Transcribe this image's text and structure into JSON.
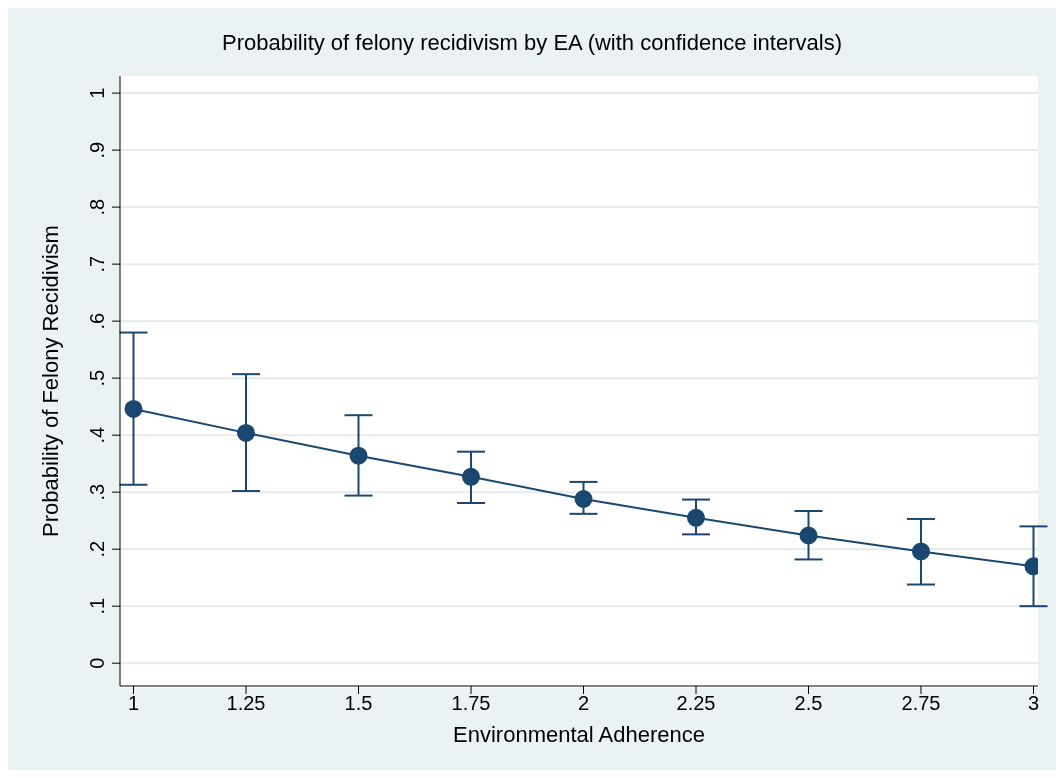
{
  "chart_data": {
    "type": "line",
    "title": "Probability of felony recidivism by EA (with confidence intervals)",
    "xlabel": "Environmental Adherence",
    "ylabel": "Probability of Felony Recidivism",
    "x": [
      1,
      1.25,
      1.5,
      1.75,
      2,
      2.25,
      2.5,
      2.75,
      3
    ],
    "series": [
      {
        "color": "#1a476f",
        "values": [
          0.446,
          0.404,
          0.364,
          0.327,
          0.288,
          0.255,
          0.224,
          0.196,
          0.17
        ],
        "errors": [
          [
            0.313,
            0.58
          ],
          [
            0.302,
            0.507
          ],
          [
            0.294,
            0.435
          ],
          [
            0.281,
            0.371
          ],
          [
            0.262,
            0.318
          ],
          [
            0.226,
            0.287
          ],
          [
            0.182,
            0.267
          ],
          [
            0.138,
            0.253
          ],
          [
            0.1,
            0.24
          ]
        ]
      }
    ],
    "xlim": [
      0.97,
      3.01
    ],
    "xticks": [
      1,
      1.25,
      1.5,
      1.75,
      2,
      2.25,
      2.5,
      2.75,
      3
    ],
    "ylim": [
      -0.04,
      1.03
    ],
    "yticks": [
      0,
      {
        "value": 0.1,
        "label": ".1"
      },
      {
        "value": 0.2,
        "label": ".2"
      },
      {
        "value": 0.3,
        "label": ".3"
      },
      {
        "value": 0.4,
        "label": ".4"
      },
      {
        "value": 0.5,
        "label": ".5"
      },
      {
        "value": 0.6,
        "label": ".6"
      },
      {
        "value": 0.7,
        "label": ".7"
      },
      {
        "value": 0.8,
        "label": ".8"
      },
      {
        "value": 0.9,
        "label": ".9"
      },
      1
    ],
    "grid": "y",
    "marker": "circle",
    "line_style": "solid",
    "legend": false
  }
}
